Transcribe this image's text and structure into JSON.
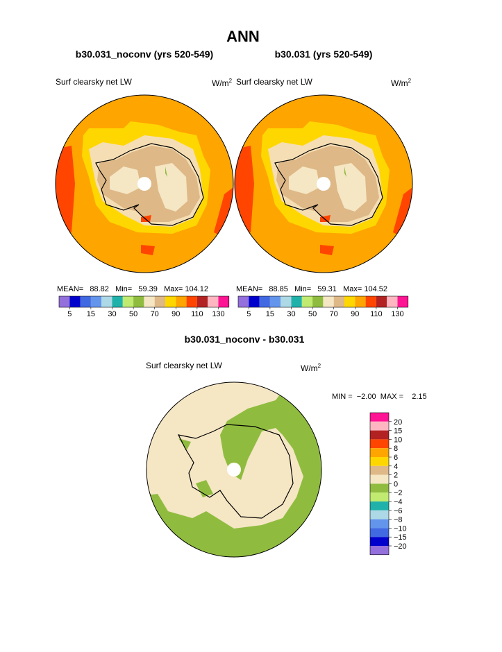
{
  "header": {
    "title": "ANN"
  },
  "panels": [
    {
      "subtitle": "b30.031_noconv (yrs 520-549)",
      "variable": "Surf clearsky net LW",
      "units": {
        "base": "W/m",
        "exponent": "2"
      },
      "stats": "MEAN=   88.82   Min=   59.39   Max= 104.12",
      "colorbar_labels": [
        "5",
        "15",
        "30",
        "50",
        "70",
        "90",
        "110",
        "130"
      ]
    },
    {
      "subtitle": "b30.031 (yrs 520-549)",
      "variable": "Surf clearsky net LW",
      "units": {
        "base": "W/m",
        "exponent": "2"
      },
      "stats": "MEAN=   88.85   Min=   59.31   Max= 104.52",
      "colorbar_labels": [
        "5",
        "15",
        "30",
        "50",
        "70",
        "90",
        "110",
        "130"
      ]
    }
  ],
  "difference": {
    "title": "b30.031_noconv - b30.031",
    "variable": "Surf clearsky net LW",
    "units": {
      "base": "W/m",
      "exponent": "2"
    },
    "stats": "MIN =  −2.00  MAX =    2.15",
    "colorbar_labels": [
      "20",
      "15",
      "10",
      "8",
      "6",
      "4",
      "2",
      "0",
      "−2",
      "−4",
      "−6",
      "−8",
      "−10",
      "−15",
      "−20"
    ]
  }
}
